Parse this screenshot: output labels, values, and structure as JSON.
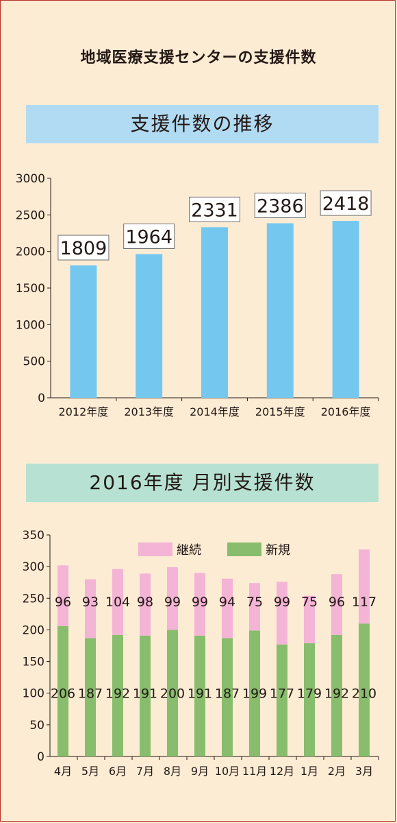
{
  "page": {
    "title": "地域医療支援センターの支援件数"
  },
  "chart1_header": "支援件数の推移",
  "chart2_header": "2016年度 月別支援件数",
  "colors": {
    "background": "#fdecd4",
    "bar_blue": "#74c8f0",
    "green": "#87bd6d",
    "pink": "#f4b4d6"
  },
  "chart_data": [
    {
      "type": "bar",
      "title": "支援件数の推移",
      "categories": [
        "2012年度",
        "2013年度",
        "2014年度",
        "2015年度",
        "2016年度"
      ],
      "values": [
        1809,
        1964,
        2331,
        2386,
        2418
      ],
      "ylim": [
        0,
        3000
      ],
      "yticks": [
        0,
        500,
        1000,
        1500,
        2000,
        2500,
        3000
      ],
      "grid": false,
      "data_labels": true
    },
    {
      "type": "bar",
      "stacked": true,
      "title": "2016年度 月別支援件数",
      "categories": [
        "4月",
        "5月",
        "6月",
        "7月",
        "8月",
        "9月",
        "10月",
        "11月",
        "12月",
        "1月",
        "2月",
        "3月"
      ],
      "series": [
        {
          "name": "新規",
          "values": [
            206,
            187,
            192,
            191,
            200,
            191,
            187,
            199,
            177,
            179,
            192,
            210
          ]
        },
        {
          "name": "継続",
          "values": [
            96,
            93,
            104,
            98,
            99,
            99,
            94,
            75,
            99,
            75,
            96,
            117
          ]
        }
      ],
      "ylim": [
        0,
        350
      ],
      "yticks": [
        0,
        50,
        100,
        150,
        200,
        250,
        300,
        350
      ],
      "legend_position": "top",
      "grid": false
    }
  ]
}
